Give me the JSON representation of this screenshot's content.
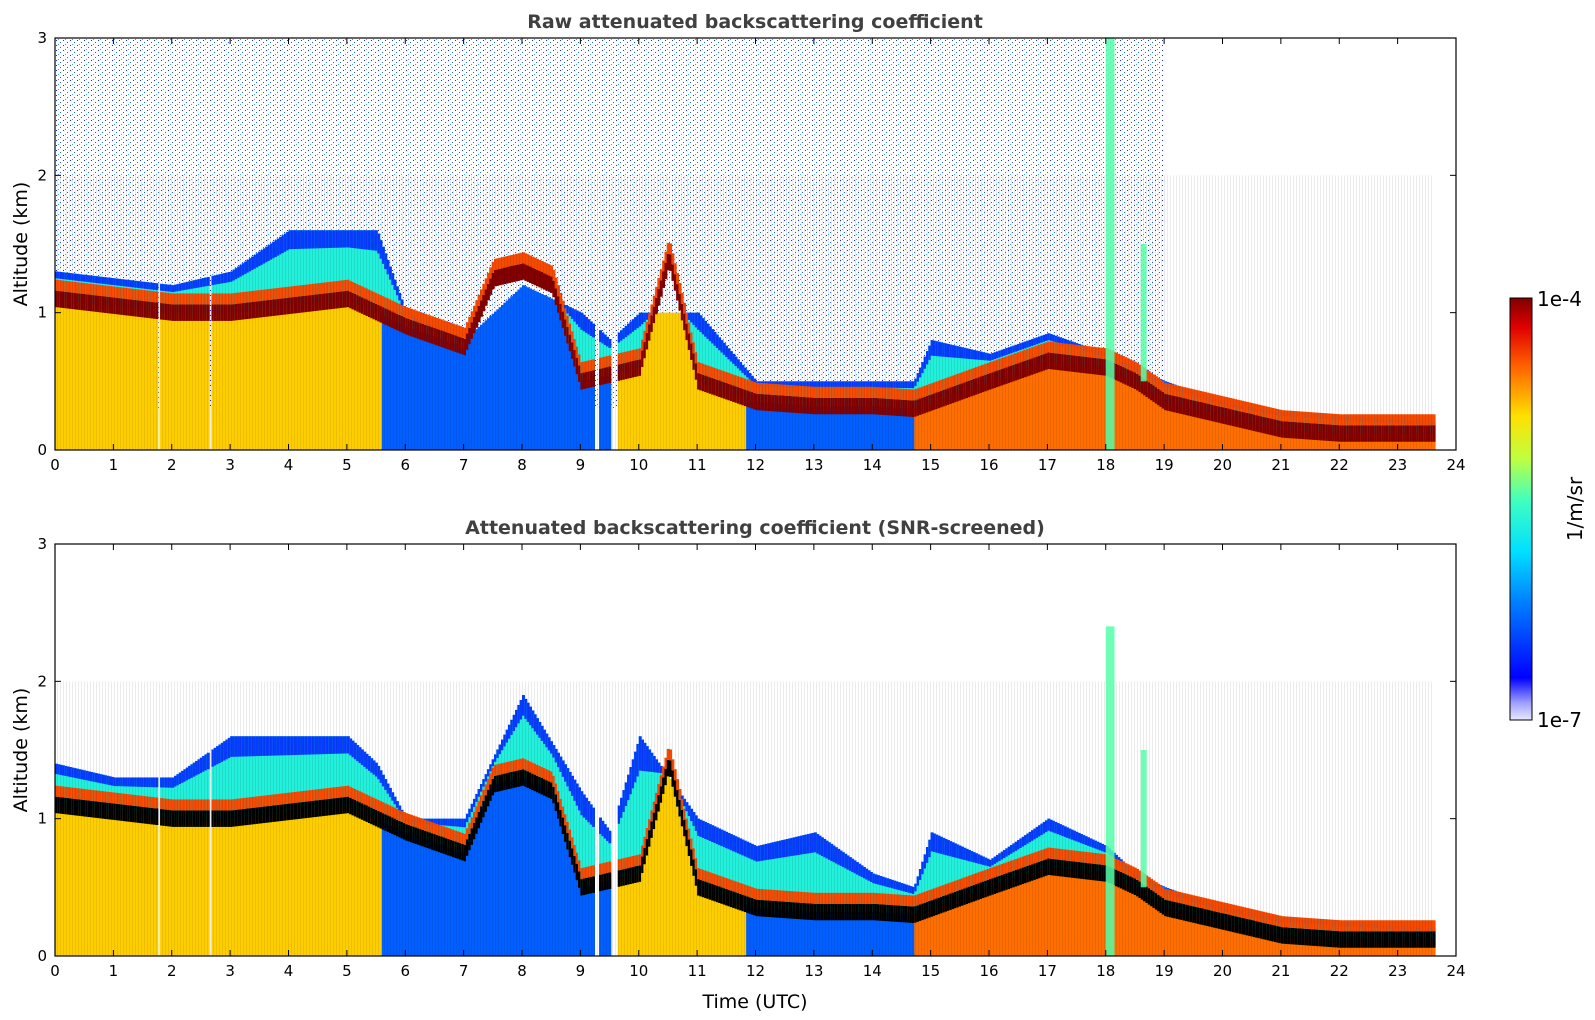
{
  "chart_data": [
    {
      "type": "heatmap",
      "title": "Raw attenuated backscattering coefficient",
      "xlabel": "",
      "ylabel": "Altitude (km)",
      "xlim": [
        0,
        24
      ],
      "ylim": [
        0,
        3
      ],
      "xticks": [
        "0",
        "1",
        "2",
        "3",
        "4",
        "5",
        "6",
        "7",
        "8",
        "9",
        "10",
        "11",
        "12",
        "13",
        "14",
        "15",
        "16",
        "17",
        "18",
        "19",
        "20",
        "21",
        "22",
        "23",
        "24"
      ],
      "yticks": [
        "0",
        "1",
        "2",
        "3"
      ],
      "colormap": "jet",
      "color_scale": "log",
      "data_end_time": 23.6,
      "gaps": [
        [
          1.75,
          1.8
        ],
        [
          2.62,
          2.68
        ],
        [
          9.22,
          9.28
        ],
        [
          9.5,
          9.6
        ]
      ],
      "layers": [
        {
          "name": "boundary layer top",
          "x": [
            0,
            1,
            2,
            3,
            4,
            5,
            5.5,
            6,
            7,
            8,
            9,
            9.5,
            10,
            11,
            12,
            13,
            14,
            14.7,
            15,
            16,
            17,
            18,
            18.5,
            19,
            20,
            21,
            22,
            23,
            23.6
          ],
          "y": [
            1.3,
            1.25,
            1.2,
            1.3,
            1.6,
            1.6,
            1.6,
            1.0,
            0.8,
            1.2,
            1.0,
            0.8,
            1.0,
            1.0,
            0.5,
            0.5,
            0.5,
            0.5,
            0.8,
            0.7,
            0.85,
            0.7,
            0.6,
            0.5,
            0.35,
            0.28,
            0.25,
            0.22,
            0.2
          ]
        },
        {
          "name": "aerosol layer (maximum)",
          "x": [
            0,
            1,
            2,
            3,
            4,
            5,
            6,
            7,
            7.5,
            8,
            8.5,
            9,
            10,
            10.5,
            11,
            12,
            13,
            14,
            14.7,
            16,
            17,
            18,
            18.5,
            19,
            20,
            21,
            22,
            23,
            23.6
          ],
          "y": [
            1.1,
            1.05,
            1.0,
            1.0,
            1.05,
            1.1,
            0.9,
            0.75,
            1.25,
            1.3,
            1.2,
            0.5,
            0.6,
            1.4,
            0.5,
            0.35,
            0.32,
            0.32,
            0.3,
            0.5,
            0.65,
            0.6,
            0.5,
            0.35,
            0.25,
            0.15,
            0.12,
            0.12,
            0.12
          ]
        }
      ],
      "clouds": [
        {
          "x": [
            18.0,
            18.15
          ],
          "ylim": [
            0,
            3.0
          ]
        },
        {
          "x": [
            18.6,
            18.7
          ],
          "ylim": [
            0.5,
            1.5
          ]
        }
      ]
    },
    {
      "type": "heatmap",
      "title": "Attenuated backscattering coefficient (SNR-screened)",
      "xlabel": "Time (UTC)",
      "ylabel": "Altitude (km)",
      "xlim": [
        0,
        24
      ],
      "ylim": [
        0,
        3
      ],
      "xticks": [
        "0",
        "1",
        "2",
        "3",
        "4",
        "5",
        "6",
        "7",
        "8",
        "9",
        "10",
        "11",
        "12",
        "13",
        "14",
        "15",
        "16",
        "17",
        "18",
        "19",
        "20",
        "21",
        "22",
        "23",
        "24"
      ],
      "yticks": [
        "0",
        "1",
        "2",
        "3"
      ],
      "colormap": "jet",
      "color_scale": "log",
      "data_end_time": 23.6,
      "gaps": [
        [
          1.75,
          1.8
        ],
        [
          2.62,
          2.68
        ],
        [
          9.22,
          9.28
        ],
        [
          9.5,
          9.6
        ]
      ],
      "layers": [
        {
          "name": "boundary layer top",
          "x": [
            0,
            1,
            2,
            3,
            4,
            5,
            5.5,
            6,
            7,
            8,
            9,
            9.5,
            10,
            11,
            12,
            13,
            14,
            14.7,
            15,
            16,
            17,
            18,
            18.5,
            19,
            20,
            21,
            22,
            23,
            23.6
          ],
          "y": [
            1.4,
            1.3,
            1.3,
            1.6,
            1.6,
            1.6,
            1.4,
            1.0,
            1.0,
            1.9,
            1.2,
            0.9,
            1.6,
            1.0,
            0.8,
            0.9,
            0.6,
            0.5,
            0.9,
            0.7,
            1.0,
            0.8,
            0.6,
            0.5,
            0.35,
            0.28,
            0.25,
            0.22,
            0.2
          ]
        },
        {
          "name": "aerosol layer (maximum)",
          "x": [
            0,
            1,
            2,
            3,
            4,
            5,
            6,
            7,
            7.5,
            8,
            8.5,
            9,
            10,
            10.5,
            11,
            12,
            13,
            14,
            14.7,
            16,
            17,
            18,
            18.5,
            19,
            20,
            21,
            22,
            23,
            23.6
          ],
          "y": [
            1.1,
            1.05,
            1.0,
            1.0,
            1.05,
            1.1,
            0.9,
            0.75,
            1.25,
            1.3,
            1.2,
            0.5,
            0.6,
            1.4,
            0.5,
            0.35,
            0.32,
            0.32,
            0.3,
            0.5,
            0.65,
            0.6,
            0.5,
            0.35,
            0.25,
            0.15,
            0.12,
            0.12,
            0.12
          ]
        }
      ],
      "clouds": [
        {
          "x": [
            18.0,
            18.15
          ],
          "ylim": [
            0,
            2.4
          ]
        },
        {
          "x": [
            18.6,
            18.7
          ],
          "ylim": [
            0.5,
            1.5
          ]
        }
      ]
    }
  ],
  "colorbar": {
    "label": "1/m/sr",
    "max_label": "1e-4",
    "min_label": "1e-7",
    "range": [
      1e-07,
      0.0001
    ],
    "scale": "log",
    "colormap": "jet"
  }
}
